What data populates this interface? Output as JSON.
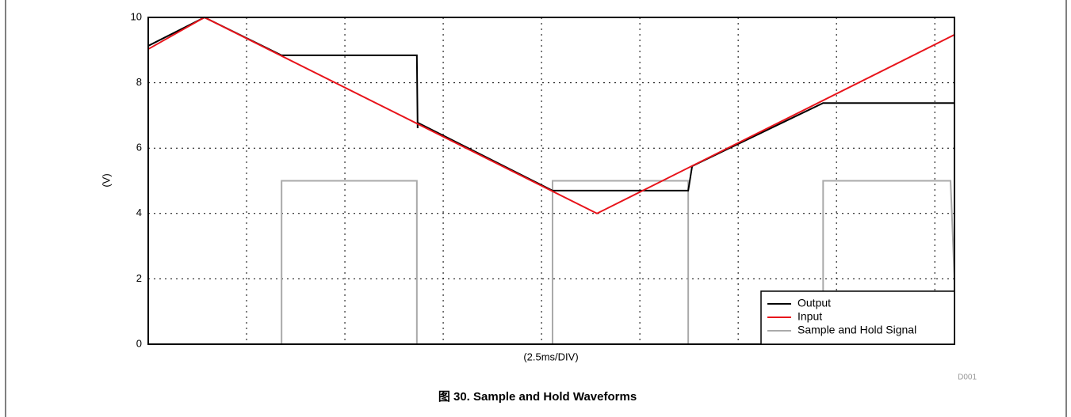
{
  "chart_data": {
    "type": "line",
    "title": "图 30. Sample and Hold Waveforms",
    "xlabel": "(2.5ms/DIV)",
    "ylabel": "(V)",
    "annotation": "D001",
    "xlim": [
      0,
      20.5
    ],
    "xticks": [
      2.5,
      5,
      7.5,
      10,
      12.5,
      15,
      17.5,
      20
    ],
    "ylim": [
      0,
      10
    ],
    "yticks": [
      0,
      2,
      4,
      6,
      8,
      10
    ],
    "grid": true,
    "legend": "lower right",
    "series": [
      {
        "name": "Output",
        "color": "#000000",
        "x": [
          0,
          1.43,
          3.39,
          6.83,
          6.85,
          6.85,
          10.28,
          13.73,
          13.83,
          17.16,
          20.5
        ],
        "values": [
          9.13,
          10,
          8.84,
          8.84,
          6.61,
          6.78,
          4.7,
          4.7,
          5.45,
          7.38,
          7.38
        ]
      },
      {
        "name": "Input",
        "color": "#e8141b",
        "x": [
          0,
          1.43,
          11.41,
          20.5
        ],
        "values": [
          9.03,
          10,
          4.0,
          9.47
        ]
      },
      {
        "name": "Sample and Hold Signal",
        "color": "#aaaaaa",
        "x": [
          0,
          3.39,
          3.39,
          6.83,
          6.83,
          10.28,
          10.28,
          13.73,
          13.73,
          17.16,
          17.16,
          20.4,
          20.5
        ],
        "values": [
          0,
          0,
          5,
          5,
          0,
          0,
          5,
          5,
          0,
          0,
          5,
          5,
          2
        ]
      }
    ]
  }
}
